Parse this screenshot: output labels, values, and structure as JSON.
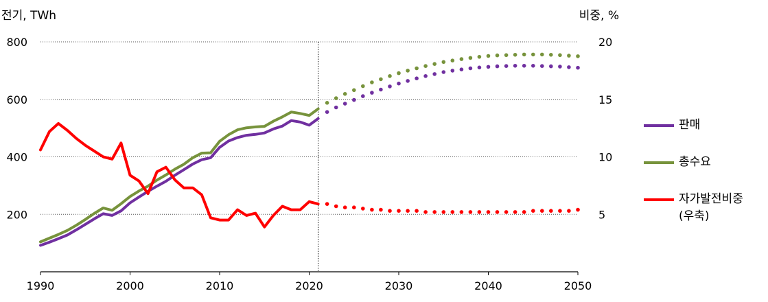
{
  "chart_data": {
    "type": "line",
    "left_axis_title": "전기, TWh",
    "right_axis_title": "비중, %",
    "xlim": [
      1990,
      2050
    ],
    "ylim_left": [
      0,
      800
    ],
    "ylim_right": [
      0,
      20
    ],
    "x_ticks": [
      1990,
      2000,
      2010,
      2020,
      2030,
      2040,
      2050
    ],
    "y_ticks_left": [
      200,
      400,
      600,
      800
    ],
    "y_ticks_right": [
      5,
      10,
      15,
      20
    ],
    "grid": "horizontal dotted",
    "forecast_start": 2021,
    "legend_position": "right",
    "series": [
      {
        "name": "판매",
        "axis": "left",
        "color": "#7030A0",
        "historical": [
          [
            1990,
            92
          ],
          [
            1991,
            103
          ],
          [
            1992,
            115
          ],
          [
            1993,
            128
          ],
          [
            1994,
            146
          ],
          [
            1995,
            165
          ],
          [
            1996,
            184
          ],
          [
            1997,
            202
          ],
          [
            1998,
            196
          ],
          [
            1999,
            212
          ],
          [
            2000,
            240
          ],
          [
            2001,
            260
          ],
          [
            2002,
            280
          ],
          [
            2003,
            298
          ],
          [
            2004,
            315
          ],
          [
            2005,
            336
          ],
          [
            2006,
            355
          ],
          [
            2007,
            375
          ],
          [
            2008,
            390
          ],
          [
            2009,
            397
          ],
          [
            2010,
            433
          ],
          [
            2011,
            455
          ],
          [
            2012,
            467
          ],
          [
            2013,
            475
          ],
          [
            2014,
            478
          ],
          [
            2015,
            483
          ],
          [
            2016,
            497
          ],
          [
            2017,
            507
          ],
          [
            2018,
            526
          ],
          [
            2019,
            521
          ],
          [
            2020,
            510
          ],
          [
            2021,
            533
          ]
        ],
        "forecast": [
          [
            2021,
            533
          ],
          [
            2022,
            556
          ],
          [
            2023,
            572
          ],
          [
            2024,
            585
          ],
          [
            2025,
            598
          ],
          [
            2026,
            611
          ],
          [
            2027,
            623
          ],
          [
            2028,
            634
          ],
          [
            2029,
            645
          ],
          [
            2030,
            655
          ],
          [
            2031,
            664
          ],
          [
            2032,
            673
          ],
          [
            2033,
            681
          ],
          [
            2034,
            688
          ],
          [
            2035,
            695
          ],
          [
            2036,
            700
          ],
          [
            2037,
            704
          ],
          [
            2038,
            708
          ],
          [
            2039,
            711
          ],
          [
            2040,
            713
          ],
          [
            2041,
            715
          ],
          [
            2042,
            716
          ],
          [
            2043,
            717
          ],
          [
            2044,
            717
          ],
          [
            2045,
            717
          ],
          [
            2046,
            716
          ],
          [
            2047,
            715
          ],
          [
            2048,
            714
          ],
          [
            2049,
            712
          ],
          [
            2050,
            710
          ]
        ]
      },
      {
        "name": "총수요",
        "axis": "left",
        "color": "#77933C",
        "historical": [
          [
            1990,
            104
          ],
          [
            1991,
            117
          ],
          [
            1992,
            130
          ],
          [
            1993,
            144
          ],
          [
            1994,
            162
          ],
          [
            1995,
            182
          ],
          [
            1996,
            203
          ],
          [
            1997,
            222
          ],
          [
            1998,
            214
          ],
          [
            1999,
            237
          ],
          [
            2000,
            262
          ],
          [
            2001,
            281
          ],
          [
            2002,
            298
          ],
          [
            2003,
            319
          ],
          [
            2004,
            337
          ],
          [
            2005,
            357
          ],
          [
            2006,
            374
          ],
          [
            2007,
            397
          ],
          [
            2008,
            413
          ],
          [
            2009,
            414
          ],
          [
            2010,
            454
          ],
          [
            2011,
            477
          ],
          [
            2012,
            494
          ],
          [
            2013,
            501
          ],
          [
            2014,
            504
          ],
          [
            2015,
            506
          ],
          [
            2016,
            524
          ],
          [
            2017,
            539
          ],
          [
            2018,
            556
          ],
          [
            2019,
            551
          ],
          [
            2020,
            544
          ],
          [
            2021,
            567
          ]
        ],
        "forecast": [
          [
            2021,
            567
          ],
          [
            2022,
            588
          ],
          [
            2023,
            604
          ],
          [
            2024,
            619
          ],
          [
            2025,
            632
          ],
          [
            2026,
            646
          ],
          [
            2027,
            659
          ],
          [
            2028,
            670
          ],
          [
            2029,
            681
          ],
          [
            2030,
            691
          ],
          [
            2031,
            700
          ],
          [
            2032,
            708
          ],
          [
            2033,
            716
          ],
          [
            2034,
            723
          ],
          [
            2035,
            730
          ],
          [
            2036,
            735
          ],
          [
            2037,
            740
          ],
          [
            2038,
            744
          ],
          [
            2039,
            748
          ],
          [
            2040,
            751
          ],
          [
            2041,
            753
          ],
          [
            2042,
            754
          ],
          [
            2043,
            755
          ],
          [
            2044,
            756
          ],
          [
            2045,
            756
          ],
          [
            2046,
            756
          ],
          [
            2047,
            755
          ],
          [
            2048,
            754
          ],
          [
            2049,
            752
          ],
          [
            2050,
            750
          ]
        ]
      },
      {
        "name": "자가발전비중\n(우축)",
        "axis": "right",
        "color": "#FF0000",
        "historical": [
          [
            1990,
            10.6
          ],
          [
            1991,
            12.2
          ],
          [
            1992,
            12.9
          ],
          [
            1993,
            12.3
          ],
          [
            1994,
            11.6
          ],
          [
            1995,
            11.0
          ],
          [
            1996,
            10.5
          ],
          [
            1997,
            10.0
          ],
          [
            1998,
            9.8
          ],
          [
            1999,
            11.2
          ],
          [
            2000,
            8.4
          ],
          [
            2001,
            7.9
          ],
          [
            2002,
            6.8
          ],
          [
            2003,
            8.7
          ],
          [
            2004,
            9.1
          ],
          [
            2005,
            8.0
          ],
          [
            2006,
            7.3
          ],
          [
            2007,
            7.3
          ],
          [
            2008,
            6.7
          ],
          [
            2009,
            4.7
          ],
          [
            2010,
            4.5
          ],
          [
            2011,
            4.5
          ],
          [
            2012,
            5.4
          ],
          [
            2013,
            4.9
          ],
          [
            2014,
            5.1
          ],
          [
            2015,
            3.9
          ],
          [
            2016,
            4.9
          ],
          [
            2017,
            5.7
          ],
          [
            2018,
            5.4
          ],
          [
            2019,
            5.4
          ],
          [
            2020,
            6.1
          ],
          [
            2021,
            5.9
          ]
        ],
        "forecast": [
          [
            2021,
            5.9
          ],
          [
            2022,
            5.9
          ],
          [
            2023,
            5.7
          ],
          [
            2024,
            5.6
          ],
          [
            2025,
            5.6
          ],
          [
            2026,
            5.5
          ],
          [
            2027,
            5.4
          ],
          [
            2028,
            5.4
          ],
          [
            2029,
            5.3
          ],
          [
            2030,
            5.3
          ],
          [
            2031,
            5.3
          ],
          [
            2032,
            5.3
          ],
          [
            2033,
            5.2
          ],
          [
            2034,
            5.2
          ],
          [
            2035,
            5.2
          ],
          [
            2036,
            5.2
          ],
          [
            2037,
            5.2
          ],
          [
            2038,
            5.2
          ],
          [
            2039,
            5.2
          ],
          [
            2040,
            5.2
          ],
          [
            2041,
            5.2
          ],
          [
            2042,
            5.2
          ],
          [
            2043,
            5.2
          ],
          [
            2044,
            5.2
          ],
          [
            2045,
            5.3
          ],
          [
            2046,
            5.3
          ],
          [
            2047,
            5.3
          ],
          [
            2048,
            5.3
          ],
          [
            2049,
            5.3
          ],
          [
            2050,
            5.4
          ]
        ]
      }
    ]
  }
}
